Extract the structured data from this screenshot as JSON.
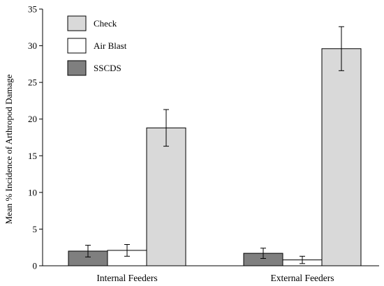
{
  "chart_data": {
    "type": "bar",
    "title": "",
    "xlabel": "",
    "ylabel": "Mean % Incidence of Arthropod Damage",
    "ylim": [
      0,
      35
    ],
    "yticks": [
      0,
      5,
      10,
      15,
      20,
      25,
      30,
      35
    ],
    "categories": [
      "Internal Feeders",
      "External Feeders"
    ],
    "series": [
      {
        "name": "SSCDS",
        "color": "#7f7f7f",
        "values": [
          2.0,
          1.7
        ],
        "errors": [
          0.8,
          0.7
        ]
      },
      {
        "name": "Air Blast",
        "color": "#ffffff",
        "values": [
          2.1,
          0.8
        ],
        "errors": [
          0.8,
          0.5
        ]
      },
      {
        "name": "Check",
        "color": "#d9d9d9",
        "values": [
          18.8,
          29.6
        ],
        "errors": [
          2.5,
          3.0
        ]
      }
    ],
    "legend": {
      "placement": "top-left",
      "order": [
        "Check",
        "Air Blast",
        "SSCDS"
      ]
    },
    "grid": false,
    "error_bars": true
  }
}
